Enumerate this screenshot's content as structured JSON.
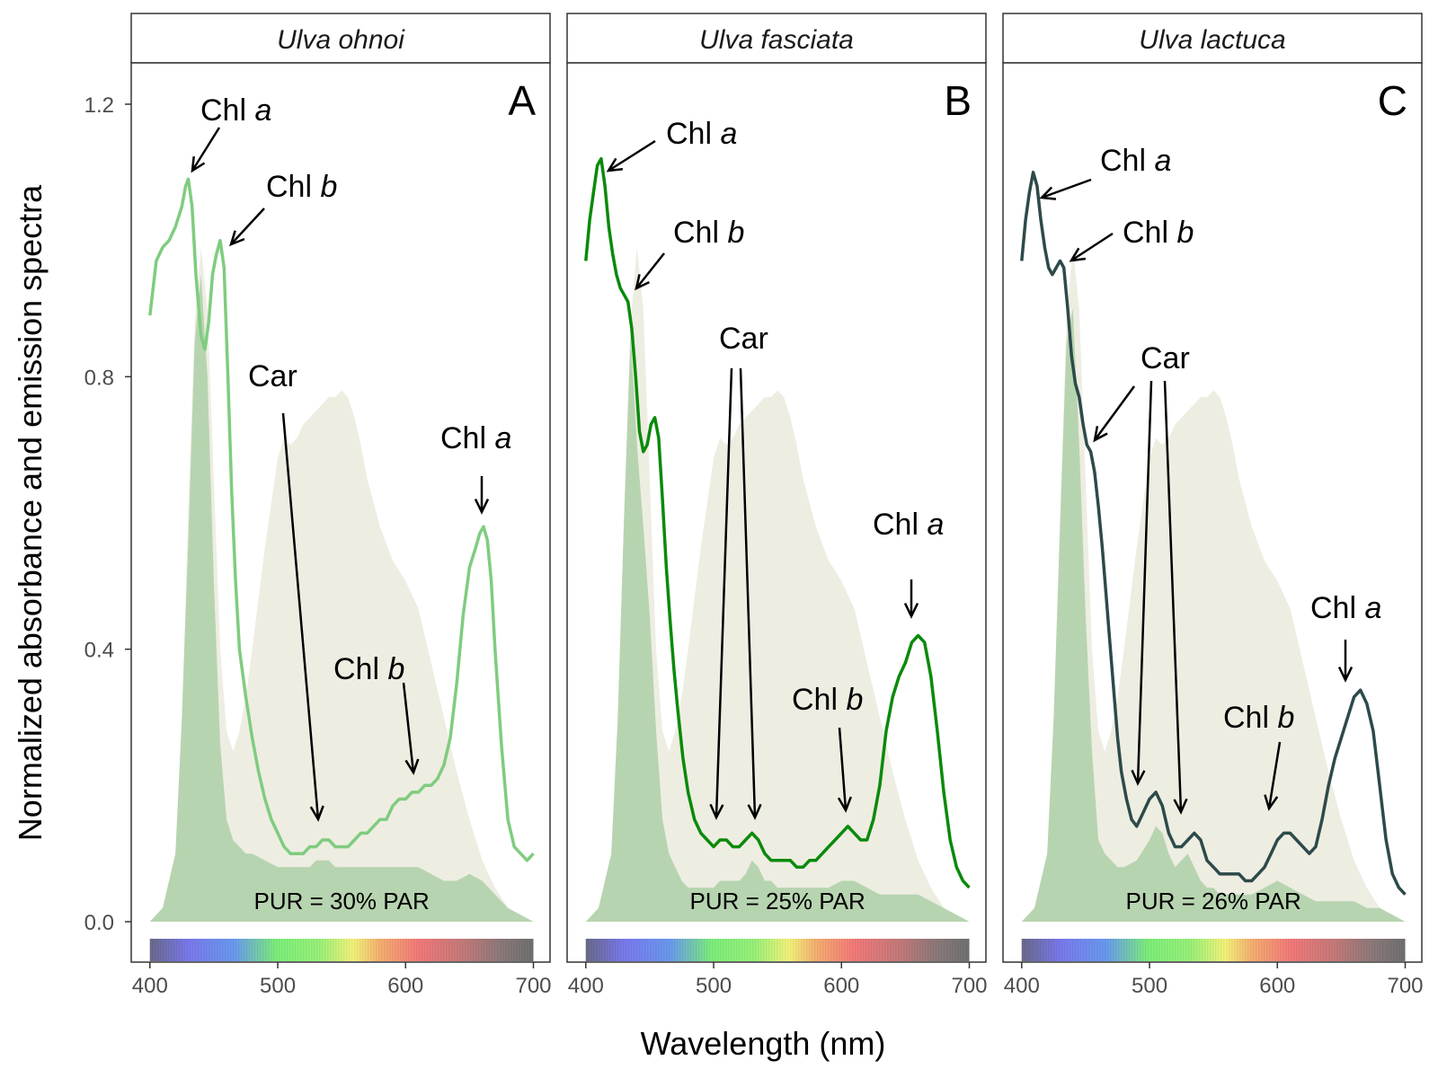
{
  "figure": {
    "ylabel": "Normalized absorbance and emission spectra",
    "xlabel": "Wavelength (nm)",
    "xticks": [
      "400",
      "500",
      "600",
      "700"
    ],
    "yticks": [
      "0.0",
      "0.4",
      "0.8",
      "1.2"
    ]
  },
  "chart_data": [
    {
      "type": "line",
      "title": "Ulva ohnoi",
      "panel_letter": "A",
      "pur_text": "PUR = 30% PAR",
      "color": "#7fcc7f",
      "xlim": [
        400,
        700
      ],
      "ylim": [
        0,
        1.2
      ],
      "series": [
        {
          "x": [
            400,
            405,
            410,
            415,
            420,
            425,
            428,
            430,
            433,
            436,
            440,
            443,
            446,
            449,
            452,
            455,
            458,
            461,
            464,
            467,
            470,
            475,
            480,
            485,
            490,
            495,
            500,
            505,
            510,
            515,
            520,
            525,
            530,
            535,
            540,
            545,
            550,
            555,
            560,
            565,
            570,
            575,
            580,
            585,
            590,
            595,
            600,
            605,
            610,
            615,
            620,
            625,
            630,
            635,
            640,
            645,
            650,
            655,
            658,
            661,
            664,
            667,
            670,
            675,
            680,
            685,
            690,
            695,
            700
          ],
          "values": [
            0.89,
            0.97,
            0.99,
            1.0,
            1.02,
            1.05,
            1.08,
            1.09,
            1.05,
            0.95,
            0.86,
            0.84,
            0.88,
            0.95,
            0.98,
            1.0,
            0.96,
            0.8,
            0.63,
            0.5,
            0.4,
            0.33,
            0.27,
            0.22,
            0.18,
            0.15,
            0.13,
            0.11,
            0.1,
            0.1,
            0.1,
            0.11,
            0.11,
            0.12,
            0.12,
            0.11,
            0.11,
            0.11,
            0.12,
            0.13,
            0.13,
            0.14,
            0.15,
            0.15,
            0.17,
            0.18,
            0.18,
            0.19,
            0.19,
            0.2,
            0.2,
            0.21,
            0.23,
            0.27,
            0.35,
            0.45,
            0.52,
            0.55,
            0.57,
            0.58,
            0.56,
            0.5,
            0.4,
            0.26,
            0.15,
            0.11,
            0.1,
            0.09,
            0.1
          ]
        }
      ],
      "annotations": [
        {
          "label": "Chl",
          "italic": "a"
        },
        {
          "label": "Chl",
          "italic": "b"
        },
        {
          "label": "Car",
          "italic": ""
        },
        {
          "label": "Chl",
          "italic": "b"
        },
        {
          "label": "Chl",
          "italic": "a"
        }
      ]
    },
    {
      "type": "line",
      "title": "Ulva fasciata",
      "panel_letter": "B",
      "pur_text": "PUR = 25% PAR",
      "color": "#0a8a0a",
      "xlim": [
        400,
        700
      ],
      "ylim": [
        0,
        1.2
      ],
      "series": [
        {
          "x": [
            400,
            403,
            406,
            409,
            412,
            415,
            418,
            421,
            424,
            427,
            430,
            433,
            436,
            439,
            442,
            445,
            448,
            451,
            454,
            457,
            460,
            463,
            466,
            469,
            472,
            476,
            480,
            485,
            490,
            495,
            500,
            505,
            510,
            515,
            520,
            525,
            530,
            535,
            540,
            545,
            550,
            555,
            560,
            565,
            570,
            575,
            580,
            585,
            590,
            595,
            600,
            605,
            610,
            615,
            620,
            625,
            630,
            635,
            640,
            645,
            650,
            655,
            660,
            665,
            670,
            675,
            680,
            685,
            690,
            695,
            700
          ],
          "values": [
            0.97,
            1.03,
            1.07,
            1.11,
            1.12,
            1.08,
            1.02,
            0.98,
            0.95,
            0.93,
            0.92,
            0.91,
            0.87,
            0.8,
            0.72,
            0.69,
            0.7,
            0.73,
            0.74,
            0.71,
            0.62,
            0.52,
            0.44,
            0.37,
            0.31,
            0.24,
            0.19,
            0.15,
            0.13,
            0.12,
            0.11,
            0.12,
            0.12,
            0.11,
            0.11,
            0.12,
            0.13,
            0.12,
            0.1,
            0.09,
            0.09,
            0.09,
            0.09,
            0.08,
            0.08,
            0.09,
            0.09,
            0.1,
            0.11,
            0.12,
            0.13,
            0.14,
            0.13,
            0.12,
            0.12,
            0.15,
            0.2,
            0.28,
            0.33,
            0.36,
            0.38,
            0.41,
            0.42,
            0.41,
            0.36,
            0.28,
            0.19,
            0.12,
            0.08,
            0.06,
            0.05
          ]
        }
      ],
      "annotations": [
        {
          "label": "Chl",
          "italic": "a"
        },
        {
          "label": "Chl",
          "italic": "b"
        },
        {
          "label": "Car",
          "italic": ""
        },
        {
          "label": "Chl",
          "italic": "b"
        },
        {
          "label": "Chl",
          "italic": "a"
        }
      ]
    },
    {
      "type": "line",
      "title": "Ulva lactuca",
      "panel_letter": "C",
      "pur_text": "PUR = 26% PAR",
      "color": "#2d4a4a",
      "xlim": [
        400,
        700
      ],
      "ylim": [
        0,
        1.2
      ],
      "series": [
        {
          "x": [
            400,
            403,
            406,
            409,
            412,
            415,
            418,
            421,
            424,
            427,
            430,
            433,
            436,
            439,
            442,
            445,
            448,
            451,
            454,
            457,
            460,
            463,
            466,
            469,
            472,
            475,
            478,
            482,
            486,
            490,
            495,
            500,
            505,
            510,
            515,
            520,
            525,
            530,
            535,
            540,
            545,
            550,
            555,
            560,
            565,
            570,
            575,
            580,
            585,
            590,
            595,
            600,
            605,
            610,
            615,
            620,
            625,
            630,
            635,
            640,
            645,
            650,
            655,
            660,
            665,
            670,
            675,
            680,
            685,
            690,
            695,
            700
          ],
          "values": [
            0.97,
            1.03,
            1.07,
            1.1,
            1.08,
            1.03,
            0.99,
            0.96,
            0.95,
            0.96,
            0.97,
            0.96,
            0.9,
            0.83,
            0.79,
            0.77,
            0.73,
            0.7,
            0.69,
            0.66,
            0.61,
            0.55,
            0.48,
            0.41,
            0.34,
            0.27,
            0.22,
            0.18,
            0.15,
            0.14,
            0.16,
            0.18,
            0.19,
            0.17,
            0.13,
            0.11,
            0.11,
            0.12,
            0.13,
            0.12,
            0.09,
            0.08,
            0.07,
            0.07,
            0.07,
            0.07,
            0.06,
            0.06,
            0.07,
            0.08,
            0.1,
            0.12,
            0.13,
            0.13,
            0.12,
            0.11,
            0.1,
            0.11,
            0.15,
            0.2,
            0.24,
            0.27,
            0.3,
            0.33,
            0.34,
            0.32,
            0.28,
            0.2,
            0.12,
            0.07,
            0.05,
            0.04
          ]
        }
      ],
      "annotations": [
        {
          "label": "Chl",
          "italic": "a"
        },
        {
          "label": "Chl",
          "italic": "b"
        },
        {
          "label": "Car",
          "italic": ""
        },
        {
          "label": "Chl",
          "italic": "b"
        },
        {
          "label": "Chl",
          "italic": "a"
        }
      ]
    }
  ],
  "emission_spectra": {
    "led_light_color": "#eeede2",
    "absorbed_light_color": "#b3d3ad",
    "x": [
      400,
      410,
      420,
      425,
      430,
      435,
      440,
      445,
      450,
      455,
      460,
      465,
      470,
      475,
      480,
      490,
      500,
      505,
      510,
      515,
      520,
      525,
      530,
      535,
      540,
      545,
      550,
      555,
      560,
      565,
      570,
      580,
      590,
      600,
      610,
      620,
      630,
      640,
      650,
      660,
      670,
      680,
      690,
      700
    ],
    "led": [
      0.0,
      0.02,
      0.1,
      0.3,
      0.6,
      0.88,
      0.99,
      0.9,
      0.65,
      0.4,
      0.28,
      0.25,
      0.28,
      0.33,
      0.4,
      0.55,
      0.68,
      0.71,
      0.7,
      0.71,
      0.73,
      0.74,
      0.75,
      0.76,
      0.77,
      0.77,
      0.78,
      0.77,
      0.74,
      0.7,
      0.65,
      0.58,
      0.53,
      0.5,
      0.46,
      0.38,
      0.3,
      0.22,
      0.15,
      0.09,
      0.05,
      0.02,
      0.01,
      0.0
    ],
    "panels": [
      {
        "absorbed": [
          0.0,
          0.02,
          0.1,
          0.3,
          0.56,
          0.85,
          0.95,
          0.8,
          0.5,
          0.26,
          0.15,
          0.12,
          0.11,
          0.1,
          0.1,
          0.09,
          0.08,
          0.08,
          0.08,
          0.08,
          0.08,
          0.08,
          0.09,
          0.09,
          0.09,
          0.08,
          0.08,
          0.08,
          0.08,
          0.08,
          0.08,
          0.08,
          0.08,
          0.08,
          0.08,
          0.07,
          0.06,
          0.06,
          0.07,
          0.06,
          0.04,
          0.02,
          0.01,
          0.0
        ]
      },
      {
        "absorbed": [
          0.0,
          0.02,
          0.1,
          0.3,
          0.6,
          0.86,
          0.7,
          0.58,
          0.45,
          0.28,
          0.15,
          0.1,
          0.08,
          0.06,
          0.05,
          0.05,
          0.05,
          0.06,
          0.06,
          0.06,
          0.06,
          0.07,
          0.09,
          0.08,
          0.06,
          0.06,
          0.05,
          0.05,
          0.05,
          0.05,
          0.05,
          0.05,
          0.05,
          0.06,
          0.06,
          0.05,
          0.04,
          0.04,
          0.04,
          0.04,
          0.03,
          0.02,
          0.01,
          0.0
        ]
      },
      {
        "absorbed": [
          0.0,
          0.02,
          0.1,
          0.3,
          0.58,
          0.85,
          0.9,
          0.7,
          0.45,
          0.25,
          0.12,
          0.1,
          0.09,
          0.08,
          0.08,
          0.09,
          0.12,
          0.14,
          0.13,
          0.1,
          0.08,
          0.09,
          0.1,
          0.08,
          0.06,
          0.05,
          0.05,
          0.04,
          0.04,
          0.04,
          0.04,
          0.04,
          0.05,
          0.06,
          0.05,
          0.04,
          0.03,
          0.03,
          0.03,
          0.03,
          0.02,
          0.02,
          0.01,
          0.0
        ]
      }
    ]
  }
}
